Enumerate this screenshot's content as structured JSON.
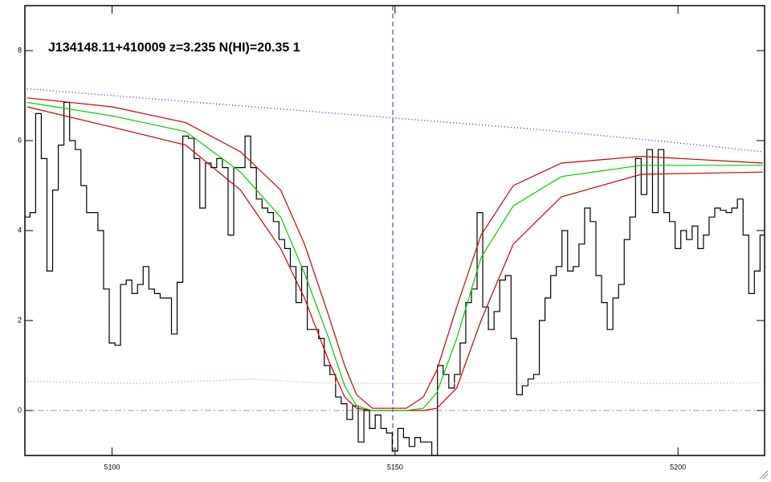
{
  "chart_data": {
    "type": "line",
    "title": "J134148.11+410009 z=3.235 N(HI)=20.35 1",
    "xlim": [
      5084.6,
      5215.3
    ],
    "ylim": [
      -1,
      9
    ],
    "xticks": [
      5100,
      5150,
      5200
    ],
    "yticks": [
      0,
      2,
      4,
      6,
      8
    ],
    "zero_line": 0,
    "marker_x": 5149.6,
    "series": [
      {
        "color": "#000000",
        "style": "step",
        "x": [
          5085,
          5086,
          5087,
          5088,
          5089,
          5090,
          5091,
          5092,
          5093,
          5094,
          5095,
          5096,
          5097,
          5098,
          5099,
          5100,
          5101,
          5102,
          5103,
          5104,
          5105,
          5106,
          5107,
          5108,
          5109,
          5110,
          5111,
          5112,
          5113,
          5114,
          5115,
          5116,
          5117,
          5118,
          5119,
          5120,
          5121,
          5122,
          5123,
          5124,
          5125,
          5126,
          5127,
          5128,
          5129,
          5130,
          5131,
          5132,
          5133,
          5134,
          5135,
          5136,
          5137,
          5138,
          5139,
          5140,
          5141,
          5142,
          5143,
          5144,
          5145,
          5146,
          5147,
          5148,
          5149,
          5150,
          5151,
          5152,
          5153,
          5154,
          5155,
          5156,
          5157,
          5158,
          5159,
          5160,
          5161,
          5162,
          5163,
          5164,
          5165,
          5166,
          5167,
          5168,
          5169,
          5170,
          5171,
          5172,
          5173,
          5174,
          5175,
          5176,
          5177,
          5178,
          5179,
          5180,
          5181,
          5182,
          5183,
          5184,
          5185,
          5186,
          5187,
          5188,
          5189,
          5190,
          5191,
          5192,
          5193,
          5194,
          5195,
          5196,
          5197,
          5198,
          5199,
          5200,
          5201,
          5202,
          5203,
          5204,
          5205,
          5206,
          5207,
          5208,
          5209,
          5210,
          5211,
          5212,
          5213,
          5214,
          5215
        ],
        "values": [
          4.3,
          4.4,
          6.6,
          5.6,
          3.1,
          4.9,
          5.9,
          6.85,
          6.0,
          5.8,
          5.0,
          4.4,
          4.4,
          4.0,
          2.7,
          1.5,
          1.45,
          2.8,
          2.9,
          2.6,
          2.8,
          3.2,
          2.7,
          2.6,
          2.5,
          2.5,
          1.7,
          2.85,
          6.1,
          6.05,
          5.6,
          4.5,
          5.5,
          5.4,
          5.6,
          5.4,
          3.9,
          5.4,
          5.4,
          6.1,
          5.4,
          4.7,
          4.5,
          4.4,
          4.2,
          3.8,
          3.6,
          3.2,
          2.4,
          3.2,
          1.8,
          1.8,
          1.6,
          1.0,
          0.8,
          0.3,
          0.15,
          -0.2,
          0.1,
          -0.7,
          0.0,
          -0.4,
          -0.1,
          -0.4,
          -0.5,
          -0.9,
          -0.4,
          -0.6,
          -0.8,
          -0.6,
          -0.7,
          -0.7,
          -1.0,
          1.0,
          0.8,
          0.5,
          0.8,
          1.5,
          2.4,
          2.7,
          4.4,
          2.3,
          1.8,
          2.2,
          2.9,
          3.0,
          1.6,
          0.35,
          0.55,
          0.7,
          0.8,
          2.0,
          2.5,
          3.0,
          3.2,
          4.0,
          3.1,
          3.2,
          3.7,
          4.5,
          4.2,
          3.0,
          2.4,
          1.8,
          2.5,
          2.8,
          3.8,
          4.3,
          5.6,
          4.8,
          5.8,
          4.4,
          5.8,
          4.4,
          4.2,
          3.6,
          4.0,
          3.8,
          4.1,
          3.6,
          3.9,
          4.3,
          4.5,
          4.45,
          4.4,
          4.5,
          4.7,
          3.9,
          2.6,
          3.1,
          3.9
        ]
      },
      {
        "color": "#7b1fd8",
        "style": "dotted",
        "x": [
          5085,
          5100,
          5125,
          5150,
          5175,
          5200,
          5215
        ],
        "values": [
          7.15,
          7.0,
          6.75,
          6.5,
          6.25,
          5.95,
          5.75
        ]
      },
      {
        "color": "#e8a060",
        "style": "dotted",
        "x": [
          5085,
          5095,
          5105,
          5115,
          5125,
          5135,
          5145,
          5155,
          5165,
          5175,
          5185,
          5195,
          5205,
          5215
        ],
        "values": [
          0.65,
          0.62,
          0.6,
          0.65,
          0.7,
          0.62,
          0.6,
          0.6,
          0.62,
          0.6,
          0.65,
          0.6,
          0.6,
          0.62
        ]
      },
      {
        "color": "#d00000",
        "style": "solid",
        "x": [
          5085,
          5100,
          5113,
          5122.7,
          5129.8,
          5134,
          5138.3,
          5141.1,
          5143.2,
          5146,
          5152,
          5155,
          5157.4,
          5160.9,
          5165.2,
          5170.9,
          5179.4,
          5193.5,
          5215
        ],
        "values": [
          6.95,
          6.75,
          6.4,
          5.75,
          4.9,
          3.7,
          2.1,
          1.0,
          0.35,
          0.05,
          0.05,
          0.3,
          0.9,
          2.3,
          3.9,
          5.0,
          5.5,
          5.65,
          5.5
        ]
      },
      {
        "color": "#d00000",
        "style": "solid",
        "x": [
          5085,
          5100,
          5113,
          5122.7,
          5129.8,
          5134,
          5138.3,
          5141.1,
          5143.2,
          5146,
          5152,
          5155,
          5157.4,
          5160.9,
          5165.2,
          5170.9,
          5179.4,
          5193.5,
          5215
        ],
        "values": [
          6.75,
          6.3,
          5.9,
          4.9,
          3.6,
          2.5,
          1.1,
          0.3,
          0.05,
          0,
          0,
          0,
          0.05,
          0.5,
          2.0,
          3.7,
          4.75,
          5.25,
          5.3
        ]
      },
      {
        "color": "#00cc00",
        "style": "solid",
        "x": [
          5085,
          5100,
          5113,
          5122.7,
          5129.8,
          5134,
          5138.3,
          5141.1,
          5143.2,
          5146,
          5152,
          5155,
          5157.4,
          5160.9,
          5165.2,
          5170.9,
          5179.4,
          5193.5,
          5215
        ],
        "values": [
          6.85,
          6.55,
          6.2,
          5.3,
          4.3,
          3.05,
          1.6,
          0.55,
          0.1,
          0,
          0,
          0.05,
          0.4,
          1.6,
          3.4,
          4.55,
          5.2,
          5.45,
          5.45
        ]
      }
    ]
  }
}
